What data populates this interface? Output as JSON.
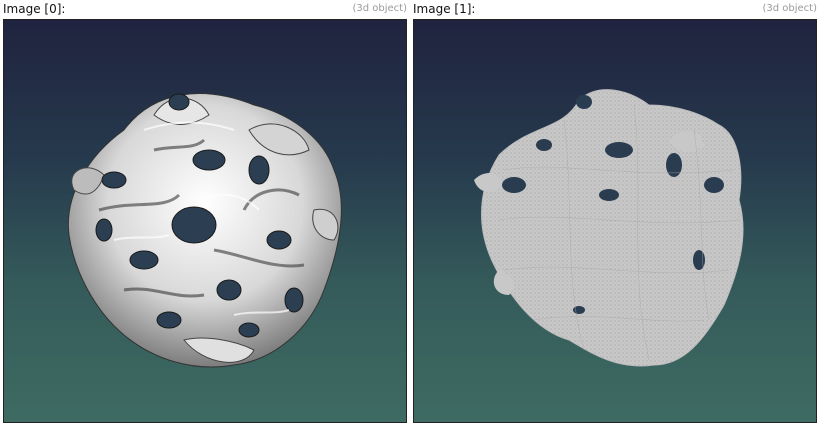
{
  "panels": [
    {
      "title": "Image [0]:",
      "tag": "(3d object)",
      "render_mode": "shaded-surface"
    },
    {
      "title": "Image [1]:",
      "tag": "(3d object)",
      "render_mode": "wireframe-mesh"
    }
  ],
  "colors": {
    "bg_top": "#20233f",
    "bg_bottom": "#3e6b62",
    "surface_light": "#f2f2f2",
    "surface_dark": "#2a2a2a",
    "mesh": "#c8c8c8"
  }
}
